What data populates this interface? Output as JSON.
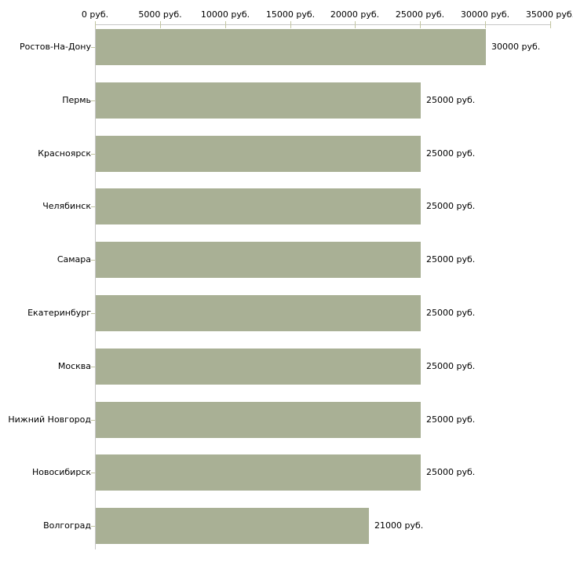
{
  "chart_data": {
    "type": "bar",
    "orientation": "horizontal",
    "title": "",
    "xlabel": "",
    "ylabel": "",
    "unit": "руб.",
    "grid": false,
    "legend": false,
    "categories": [
      "Ростов-На-Дону",
      "Пермь",
      "Красноярск",
      "Челябинск",
      "Самара",
      "Екатеринбург",
      "Москва",
      "Нижний Новгород",
      "Новосибирск",
      "Волгоград"
    ],
    "values": [
      30000,
      25000,
      25000,
      25000,
      25000,
      25000,
      25000,
      25000,
      25000,
      21000
    ],
    "value_labels": [
      "30000 руб.",
      "25000 руб.",
      "25000 руб.",
      "25000 руб.",
      "25000 руб.",
      "25000 руб.",
      "25000 руб.",
      "25000 руб.",
      "25000 руб.",
      "21000 руб."
    ],
    "x_axis": {
      "position": "top",
      "min": 0,
      "max": 35000,
      "ticks": [
        0,
        5000,
        10000,
        15000,
        20000,
        25000,
        30000,
        35000
      ],
      "tick_labels": [
        "0 руб.",
        "5000 руб.",
        "10000 руб.",
        "15000 руб.",
        "20000 руб.",
        "25000 руб.",
        "30000 руб.",
        "35000 руб."
      ]
    },
    "colors": {
      "bar": "#a9b095",
      "axis_line": "#c6c6c6",
      "tick_mark": "#c2c5a0",
      "text": "#000000",
      "background": "#ffffff"
    }
  }
}
